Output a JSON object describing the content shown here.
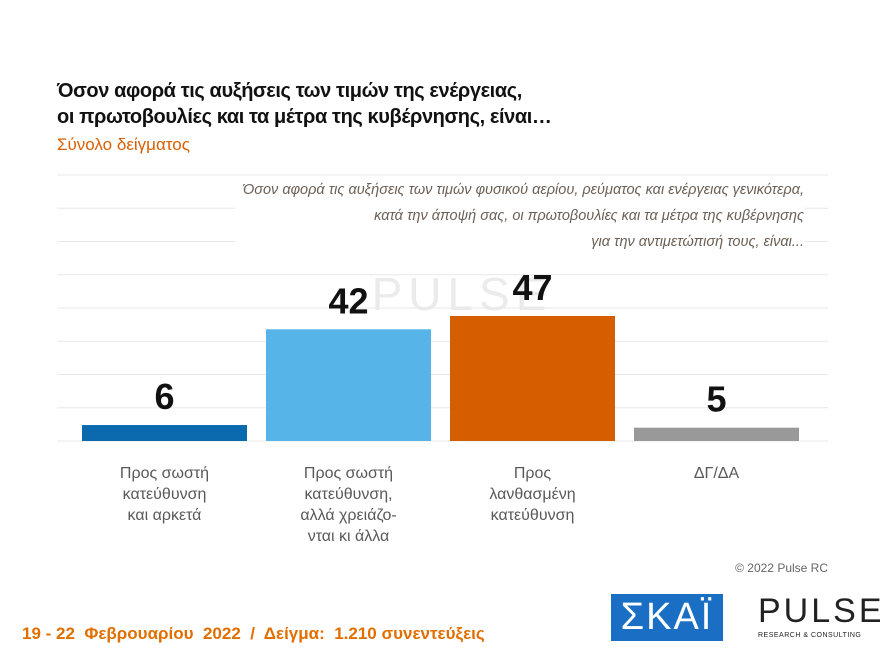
{
  "chart_data": {
    "type": "bar",
    "title": [
      "Όσον αφορά τις αυξήσεις των τιμών της ενέργειας,",
      "οι πρωτοβουλίες και τα μέτρα της κυβέρνησης, είναι…"
    ],
    "subtitle": "Σύνολο δείγματος",
    "annotation": "Όσον αφορά τις αυξήσεις των τιμών φυσικού αερίου, ρεύματος και ενέργειας γενικότερα,\nκατά την άποψή σας, οι πρωτοβουλίες και τα μέτρα της κυβέρνησης\nγια την αντιμετώπισή τους, είναι...",
    "categories": [
      "Προς σωστή\nκατεύθυνση\nκαι αρκετά",
      "Προς σωστή\nκατεύθυνση,\nαλλά χρειάζο-\nνται κι άλλα",
      "Προς\nλανθασμένη\nκατεύθυνση",
      "ΔΓ/ΔΑ"
    ],
    "values": [
      6,
      42,
      47,
      5
    ],
    "colors": [
      "#0b6aae",
      "#56b4e9",
      "#d55e00",
      "#999999"
    ],
    "ylim": [
      0,
      100
    ],
    "yticks": [
      0,
      12.5,
      25,
      37.5,
      50,
      62.5,
      75,
      87.5,
      100
    ],
    "grid": true,
    "copyright": "© 2022 Pulse RC",
    "footer": "19 - 22  Φεβρουαρίου  2022  /  Δείγμα:  1.210 συνεντεύξεις",
    "watermark": "PULSE",
    "logos": [
      "ΣΚΑΪ",
      "PULSE",
      "RESEARCH & CONSULTING"
    ]
  }
}
